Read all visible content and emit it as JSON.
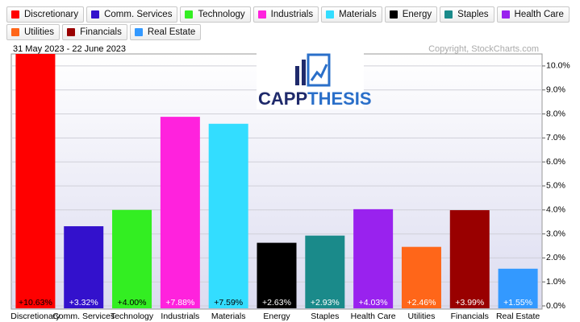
{
  "chart_data": {
    "type": "bar",
    "date_range": "31 May 2023 - 22 June 2023",
    "copyright": "Copyright, StockCharts.com",
    "watermark": [
      "CAPP",
      "THESIS"
    ],
    "categories": [
      "Discretionary",
      "Comm. Services",
      "Technology",
      "Industrials",
      "Materials",
      "Energy",
      "Staples",
      "Health Care",
      "Utilities",
      "Financials",
      "Real Estate"
    ],
    "values": [
      10.63,
      3.32,
      4.0,
      7.88,
      7.59,
      2.63,
      2.93,
      4.03,
      2.46,
      3.99,
      1.55
    ],
    "value_labels": [
      "+10.63%",
      "+3.32%",
      "+4.00%",
      "+7.88%",
      "+7.59%",
      "+2.63%",
      "+2.93%",
      "+4.03%",
      "+2.46%",
      "+3.99%",
      "+1.55%"
    ],
    "colors": [
      "#ff0000",
      "#3311cc",
      "#33ee22",
      "#ff22dd",
      "#33ddff",
      "#000000",
      "#1a8a8a",
      "#9922ee",
      "#ff6619",
      "#990000",
      "#3399ff"
    ],
    "ylim": [
      0,
      10.4
    ],
    "yticks": [
      {
        "value": 0,
        "label": "0.0%"
      },
      {
        "value": 1,
        "label": "1.0%"
      },
      {
        "value": 2,
        "label": "2.0%"
      },
      {
        "value": 3,
        "label": "3.0%"
      },
      {
        "value": 4,
        "label": "4.0%"
      },
      {
        "value": 5,
        "label": "5.0%"
      },
      {
        "value": 6,
        "label": "6.0%"
      },
      {
        "value": 7,
        "label": "7.0%"
      },
      {
        "value": 8,
        "label": "8.0%"
      },
      {
        "value": 9,
        "label": "9.0%"
      },
      {
        "value": 10,
        "label": "10.0%"
      }
    ],
    "grid": true,
    "legend": "top"
  }
}
